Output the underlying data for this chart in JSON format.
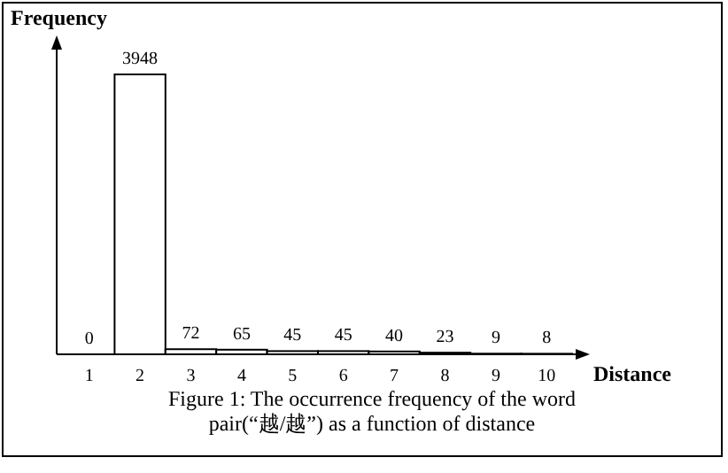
{
  "chart_data": {
    "type": "bar",
    "title": "Figure 1: The occurrence frequency of the word pair(“越/越”) as a function of distance",
    "xlabel": "Distance",
    "ylabel": "Frequency",
    "categories": [
      "1",
      "2",
      "3",
      "4",
      "5",
      "6",
      "7",
      "8",
      "9",
      "10"
    ],
    "values": [
      0,
      3948,
      72,
      65,
      45,
      45,
      40,
      23,
      9,
      8
    ],
    "color": "#ffffff",
    "data_labels": true
  }
}
